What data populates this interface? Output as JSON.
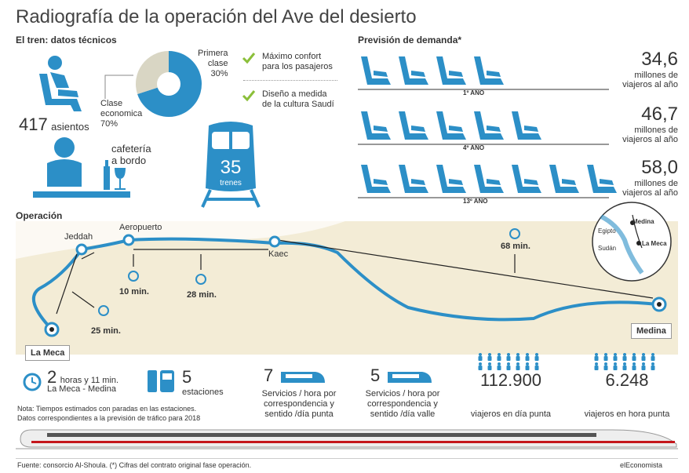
{
  "title": "Radiografía de la operación del Ave del desierto",
  "tech": {
    "heading": "El tren: datos técnicos",
    "seats_num": "417",
    "seats_label": "asientos",
    "first_class_label1": "Primera",
    "first_class_label2": "clase",
    "first_class_pct": "30%",
    "eco_label1": "Clase",
    "eco_label2": "economica",
    "eco_pct": "70%",
    "cafe1": "cafetería",
    "cafe2": "a bordo",
    "trains_num": "35",
    "trains_label": "trenes",
    "check1_a": "Máximo confort",
    "check1_b": "para los pasajeros",
    "check2_a": "Diseño a medida",
    "check2_b": "de la cultura Saudí",
    "pie": {
      "first": 30,
      "economy": 70
    }
  },
  "demand": {
    "heading": "Previsión de demanda*",
    "rows": [
      {
        "year": "1º AÑO",
        "value": "34,6",
        "seats": 4
      },
      {
        "year": "4º AÑO",
        "value": "46,7",
        "seats": 5
      },
      {
        "year": "13º AÑO",
        "value": "58,0",
        "seats": 7
      }
    ],
    "unit1": "millones de",
    "unit2": "viajeros al año"
  },
  "operation": {
    "heading": "Operación",
    "stations": {
      "jeddah": "Jeddah",
      "airport": "Aeropuerto",
      "kaec": "Kaec",
      "mecca": "La Meca",
      "medina": "Medina"
    },
    "times": {
      "t10": "10 min.",
      "t28": "28 min.",
      "t25": "25 min.",
      "t68": "68 min."
    },
    "inset": {
      "medina": "Medina",
      "egypt": "Egipto",
      "sudan": "Sudán",
      "mecca": "La Meca"
    }
  },
  "stats": {
    "hours_num": "2",
    "hours_text": "horas y 11 min.",
    "hours_route": "La Meca - Medina",
    "stations_num": "5",
    "stations_label": "estaciones",
    "peak_num": "7",
    "peak_l1": "Servicios / hora por",
    "peak_l2": "correspondencia y",
    "peak_l3": "sentido /día punta",
    "valley_num": "5",
    "valley_l1": "Servicios / hora por",
    "valley_l2": "correspondencia y",
    "valley_l3": "sentido /día valle",
    "day_num": "112.900",
    "day_label": "viajeros en día punta",
    "hour_num": "6.248",
    "hour_label": "viajeros en hora punta"
  },
  "notes": {
    "n1": "Nota: Tiempos estimados con paradas en las estaciones.",
    "n2": "Datos correspondientes a la previsión de tráfico para 2018"
  },
  "footer": {
    "source": "Fuente: consorcio Al-Shoula. (*) Cifras del contrato original fase operación.",
    "brand": "elEconomista"
  },
  "colors": {
    "accent": "#2c8fc7",
    "check": "#8bbf3a",
    "sand": "#f3ecd6"
  }
}
